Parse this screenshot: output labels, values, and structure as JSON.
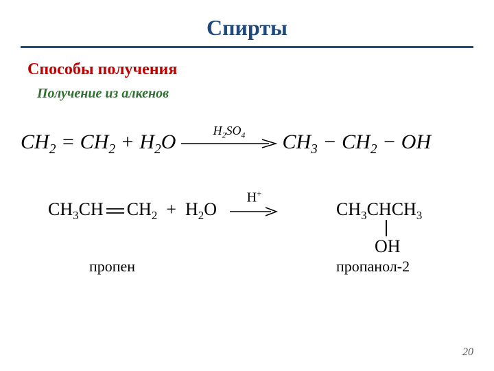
{
  "colors": {
    "title": "#1f497d",
    "hr": "#1f497d",
    "section": "#c00000",
    "subheading": "#2f7030",
    "text": "#000000",
    "pagenum": "#595959"
  },
  "title": "Спирты",
  "section_heading": "Способы получения",
  "sub_heading": "Получение из алкенов",
  "eq1": {
    "lhs_html": "CH<sub>2</sub> = CH<sub>2</sub> + H<sub>2</sub>O",
    "catalyst_html": "H<sub>2</sub>SO<sub>4</sub>",
    "rhs_html": "CH<sub>3</sub> − CH<sub>2</sub> − OH",
    "arrow_length": 140
  },
  "eq2": {
    "lhs_html": "CH<sub>3</sub>CH",
    "dbond_rhs_html": "CH<sub>2</sub>",
    "plus_html": " &nbsp;+&nbsp; H<sub>2</sub>O",
    "catalyst_html": "H<sup>+</sup>",
    "arrow_length": 70,
    "product_html": "CH<sub>3</sub>CHCH<sub>3</sub>",
    "oh": "OH",
    "label_reactant": "пропен",
    "label_product": "пропанол-2"
  },
  "page_number": "20"
}
